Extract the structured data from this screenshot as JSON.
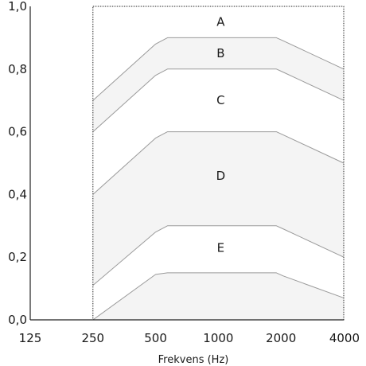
{
  "chart_data": {
    "type": "area",
    "title": "",
    "xlabel": "Frekvens (Hz)",
    "ylabel": "",
    "x_scale": "log",
    "xlim": [
      125,
      4000
    ],
    "ylim": [
      0,
      1
    ],
    "x_ticks": [
      125,
      250,
      500,
      1000,
      2000,
      4000
    ],
    "x_tick_labels": [
      "125",
      "250",
      "500",
      "1000",
      "2000",
      "4000"
    ],
    "y_ticks": [
      0,
      0.2,
      0.4,
      0.6,
      0.8,
      1.0
    ],
    "y_tick_labels": [
      "0,0",
      "0,2",
      "0,4",
      "0,6",
      "0,8",
      "1,0"
    ],
    "grid": false,
    "frame": {
      "x_range": [
        250,
        4000
      ],
      "y_range": [
        0,
        1
      ],
      "style": "dotted"
    },
    "fill_color": "#f4f4f4",
    "curve_color": "#9a9a9a",
    "curves": [
      {
        "x": [
          250,
          500,
          570,
          1900,
          2050,
          4000
        ],
        "y": [
          0.7,
          0.88,
          0.9,
          0.9,
          0.89,
          0.8
        ]
      },
      {
        "x": [
          250,
          500,
          570,
          1900,
          2050,
          4000
        ],
        "y": [
          0.6,
          0.78,
          0.8,
          0.8,
          0.79,
          0.7
        ]
      },
      {
        "x": [
          250,
          500,
          570,
          1900,
          2050,
          4000
        ],
        "y": [
          0.4,
          0.58,
          0.6,
          0.6,
          0.59,
          0.5
        ]
      },
      {
        "x": [
          250,
          500,
          570,
          1900,
          2050,
          4000
        ],
        "y": [
          0.11,
          0.28,
          0.3,
          0.3,
          0.29,
          0.2
        ]
      },
      {
        "x": [
          250,
          500,
          570,
          1900,
          2050,
          4000
        ],
        "y": [
          0.0,
          0.145,
          0.15,
          0.15,
          0.14,
          0.07
        ]
      }
    ],
    "shaded_bands": [
      [
        0,
        1
      ],
      [
        2,
        3
      ],
      [
        4,
        "axis"
      ]
    ],
    "regions": [
      {
        "label": "A",
        "x": 1000,
        "y": 0.95
      },
      {
        "label": "B",
        "x": 1000,
        "y": 0.85
      },
      {
        "label": "C",
        "x": 1000,
        "y": 0.7
      },
      {
        "label": "D",
        "x": 1000,
        "y": 0.46
      },
      {
        "label": "E",
        "x": 1000,
        "y": 0.23
      }
    ]
  }
}
